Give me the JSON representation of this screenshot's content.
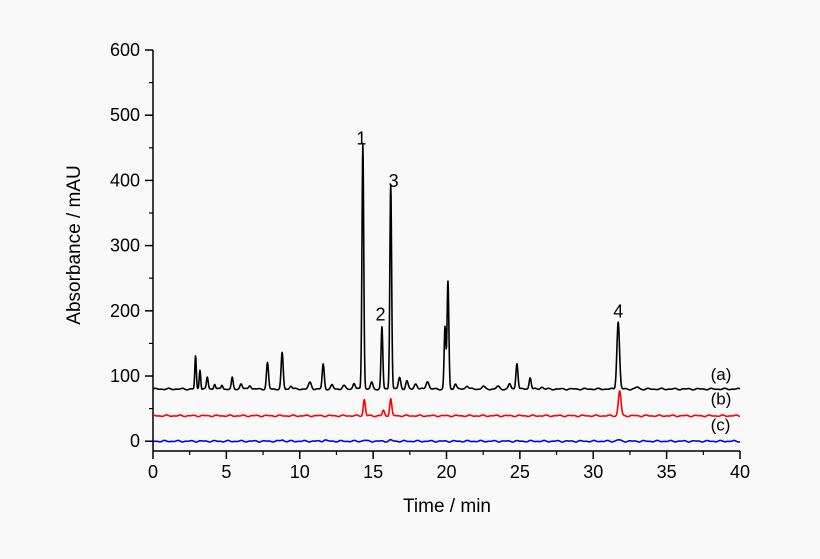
{
  "chart_data": {
    "type": "line",
    "xlabel": "Time / min",
    "ylabel": "Absorbance / mAU",
    "xlim": [
      0,
      40
    ],
    "ylim": [
      -15,
      600
    ],
    "xticks": [
      0,
      5,
      10,
      15,
      20,
      25,
      30,
      35,
      40
    ],
    "yticks": [
      0,
      100,
      200,
      300,
      400,
      500,
      600
    ],
    "grid": false,
    "series": [
      {
        "name": "(a)",
        "color": "#000000",
        "baseline": 80,
        "peaks": [
          [
            2.9,
            50,
            0.05
          ],
          [
            3.2,
            30,
            0.05
          ],
          [
            3.7,
            18,
            0.06
          ],
          [
            4.2,
            8,
            0.06
          ],
          [
            4.7,
            6,
            0.06
          ],
          [
            5.4,
            17,
            0.06
          ],
          [
            6.0,
            8,
            0.08
          ],
          [
            6.6,
            6,
            0.08
          ],
          [
            7.8,
            40,
            0.07
          ],
          [
            8.8,
            55,
            0.07
          ],
          [
            9.4,
            5,
            0.08
          ],
          [
            10.7,
            10,
            0.1
          ],
          [
            11.6,
            38,
            0.07
          ],
          [
            12.2,
            6,
            0.08
          ],
          [
            13.0,
            5,
            0.1
          ],
          [
            13.7,
            9,
            0.08
          ],
          [
            14.3,
            375,
            0.06
          ],
          [
            14.9,
            10,
            0.08
          ],
          [
            15.6,
            95,
            0.06
          ],
          [
            16.2,
            315,
            0.06
          ],
          [
            16.8,
            18,
            0.08
          ],
          [
            17.3,
            12,
            0.08
          ],
          [
            17.9,
            8,
            0.1
          ],
          [
            18.7,
            12,
            0.1
          ],
          [
            19.9,
            95,
            0.06
          ],
          [
            20.1,
            165,
            0.06
          ],
          [
            20.6,
            8,
            0.08
          ],
          [
            21.4,
            5,
            0.1
          ],
          [
            22.5,
            4,
            0.1
          ],
          [
            23.5,
            4,
            0.1
          ],
          [
            24.3,
            8,
            0.08
          ],
          [
            24.8,
            40,
            0.07
          ],
          [
            25.7,
            18,
            0.07
          ],
          [
            26.5,
            3,
            0.1
          ],
          [
            31.7,
            103,
            0.09
          ],
          [
            33.0,
            3,
            0.1
          ]
        ]
      },
      {
        "name": "(b)",
        "color": "#ff0000",
        "baseline": 39,
        "peaks": [
          [
            14.4,
            25,
            0.07
          ],
          [
            15.7,
            8,
            0.07
          ],
          [
            16.2,
            26,
            0.07
          ],
          [
            31.8,
            38,
            0.09
          ]
        ]
      },
      {
        "name": "(c)",
        "color": "#0000ff",
        "baseline": 0,
        "peaks": [
          [
            8.8,
            2,
            0.1
          ],
          [
            11.7,
            2,
            0.1
          ],
          [
            14.4,
            1.5,
            0.1
          ],
          [
            16.2,
            1.5,
            0.1
          ],
          [
            31.7,
            2,
            0.12
          ]
        ]
      }
    ],
    "annotations": [
      {
        "text": "1",
        "x": 14.2,
        "y": 455
      },
      {
        "text": "2",
        "x": 15.5,
        "y": 185
      },
      {
        "text": "3",
        "x": 16.4,
        "y": 390
      },
      {
        "text": "4",
        "x": 31.7,
        "y": 190
      }
    ],
    "series_labels": [
      {
        "text": "(a)",
        "x": 38.0,
        "y": 88
      },
      {
        "text": "(b)",
        "x": 38.0,
        "y": 50
      },
      {
        "text": "(c)",
        "x": 38.0,
        "y": 10
      }
    ]
  }
}
